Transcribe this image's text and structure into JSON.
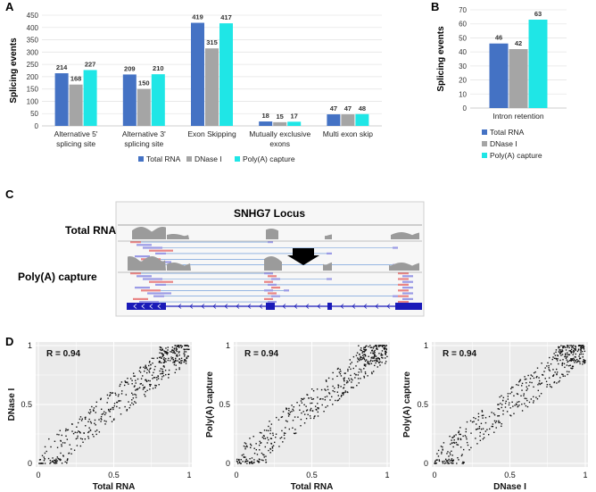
{
  "colors": {
    "total_rna": "#4472C4",
    "dnase": "#A5A5A5",
    "polya": "#1FE6E6",
    "gene_blue": "#1a1ab8"
  },
  "panel_labels": {
    "a": "A",
    "b": "B",
    "c": "C",
    "d": "D"
  },
  "chart_data": [
    {
      "id": "A",
      "type": "bar",
      "title": "",
      "ylabel": "Splicing events",
      "xlabel": "",
      "ylim": [
        0,
        450
      ],
      "ytick_step": 50,
      "categories": [
        [
          "Alternative 5'",
          "splicing site"
        ],
        [
          "Alternative 3'",
          "splicing site"
        ],
        [
          "Exon Skipping"
        ],
        [
          "Mutually exclusive",
          "exons"
        ],
        [
          "Multi exon skip"
        ]
      ],
      "series": [
        {
          "name": "Total RNA",
          "values": [
            214,
            209,
            419,
            18,
            47
          ]
        },
        {
          "name": "DNase I",
          "values": [
            168,
            150,
            315,
            15,
            47
          ]
        },
        {
          "name": "Poly(A) capture",
          "values": [
            227,
            210,
            417,
            17,
            48
          ]
        }
      ],
      "legend_position": "bottom"
    },
    {
      "id": "B",
      "type": "bar",
      "title": "",
      "ylabel": "Splicing events",
      "xlabel": "",
      "ylim": [
        0,
        70
      ],
      "ytick_step": 10,
      "categories": [
        [
          "Intron retention"
        ]
      ],
      "series": [
        {
          "name": "Total RNA",
          "values": [
            46
          ]
        },
        {
          "name": "DNase I",
          "values": [
            42
          ]
        },
        {
          "name": "Poly(A) capture",
          "values": [
            63
          ]
        }
      ],
      "legend_position": "bottom"
    },
    {
      "id": "D1",
      "type": "scatter",
      "xlabel": "Total RNA",
      "ylabel": "DNase I",
      "r_label": "R = 0.94",
      "xlim": [
        0,
        1
      ],
      "ylim": [
        0,
        1
      ],
      "xticks": [
        "0",
        "0.5",
        "1"
      ],
      "yticks": [
        "0",
        "0.5",
        "1"
      ],
      "grid": true
    },
    {
      "id": "D2",
      "type": "scatter",
      "xlabel": "Total RNA",
      "ylabel": "Poly(A) capture",
      "r_label": "R = 0.94",
      "xlim": [
        0,
        1
      ],
      "ylim": [
        0,
        1
      ],
      "xticks": [
        "0",
        "0.5",
        "1"
      ],
      "yticks": [
        "0",
        "0.5",
        "1"
      ],
      "grid": true
    },
    {
      "id": "D3",
      "type": "scatter",
      "xlabel": "DNase I",
      "ylabel": "Poly(A) capture",
      "r_label": "R = 0.94",
      "xlim": [
        0,
        1
      ],
      "ylim": [
        0,
        1
      ],
      "xticks": [
        "0",
        "0.5",
        "1"
      ],
      "yticks": [
        "0",
        "0.5",
        "1"
      ],
      "grid": true
    }
  ],
  "panel_c": {
    "title": "SNHG7 Locus",
    "track_labels": [
      "Total RNA",
      "Poly(A) capture"
    ]
  }
}
